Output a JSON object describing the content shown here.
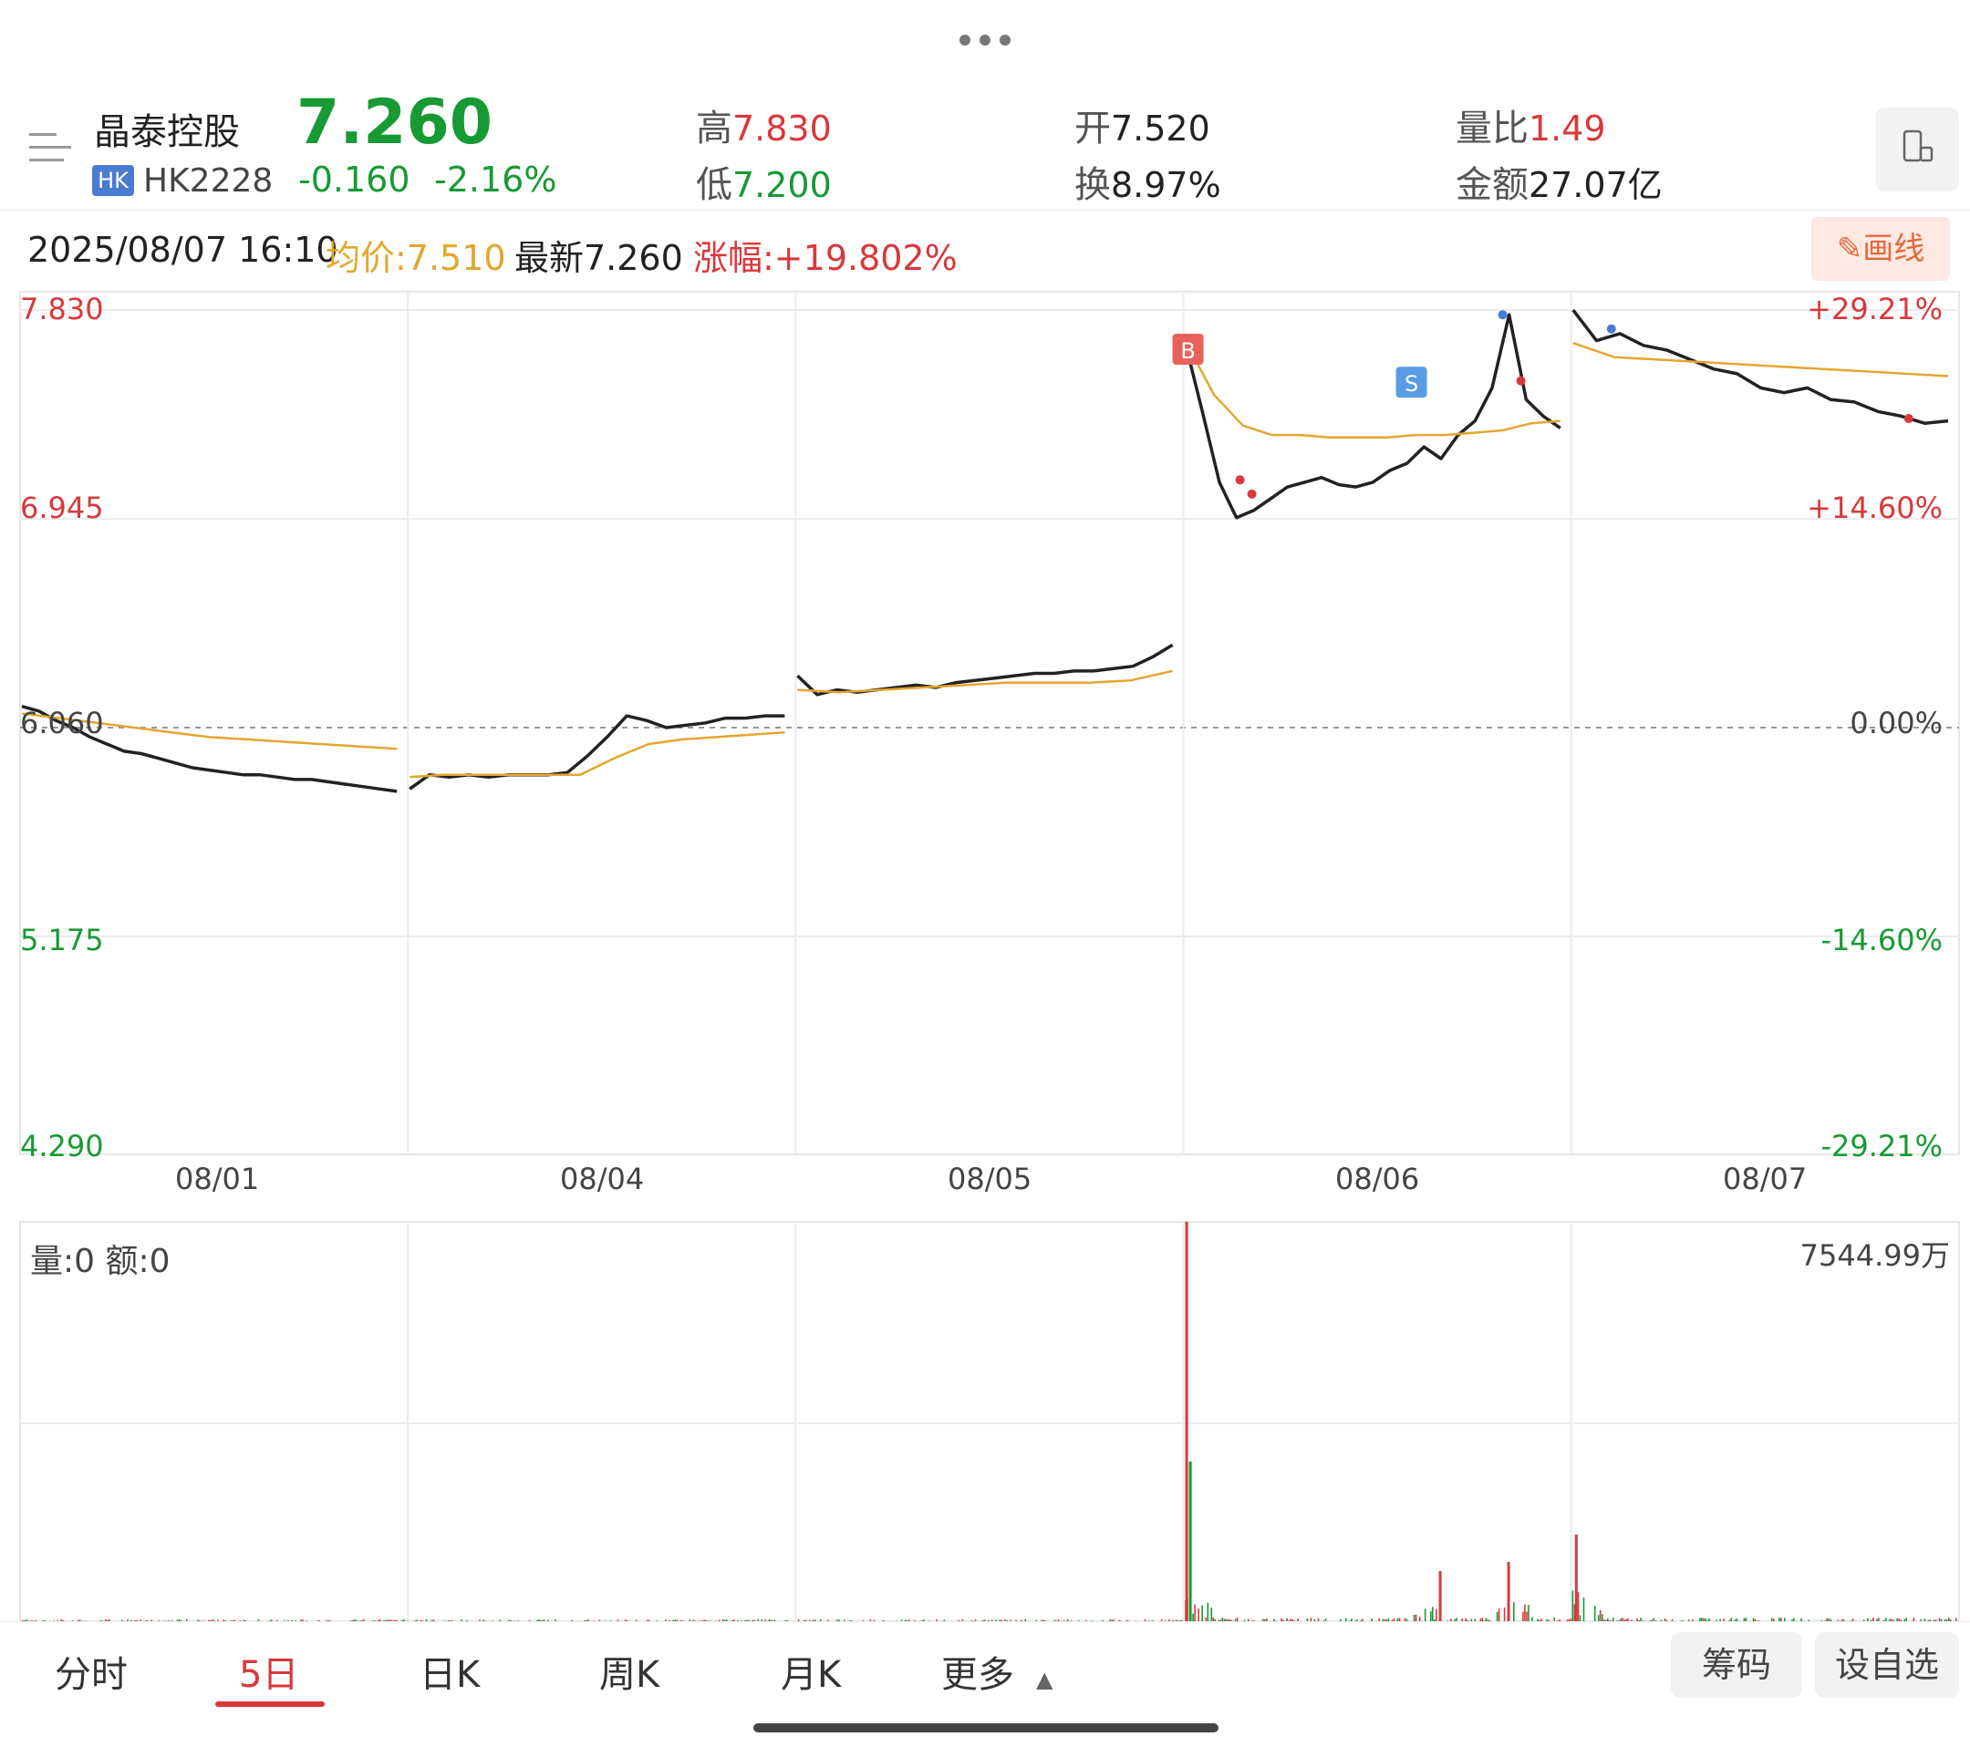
{
  "header": {
    "stock_name": "晶泰控股",
    "market_badge": "HK",
    "stock_code": "HK2228",
    "price": "7.260",
    "change": "-0.160",
    "change_pct": "-2.16%",
    "high_label": "高",
    "high_value": "7.830",
    "low_label": "低",
    "low_value": "7.200",
    "open_label": "开",
    "open_value": "7.520",
    "turnover_label": "换",
    "turnover_value": "8.97%",
    "vol_ratio_label": "量比",
    "vol_ratio_value": "1.49",
    "amount_label": "金额",
    "amount_value": "27.07亿"
  },
  "info_bar": {
    "datetime": "2025/08/07 16:10",
    "avg_label": "均价:7.510",
    "latest_label": "最新7.260",
    "rise_label": "涨幅:+19.802%",
    "draw_button": "画线"
  },
  "price_axis": {
    "left": [
      "7.830",
      "6.945",
      "6.060",
      "5.175",
      "4.290"
    ],
    "right": [
      "+29.21%",
      "+14.60%",
      "0.00%",
      "-14.60%",
      "-29.21%"
    ]
  },
  "markers": {
    "buy": "B",
    "sell": "S"
  },
  "volume_panel": {
    "label": "量:0  额:0",
    "max_label": "7544.99万"
  },
  "tabs": {
    "items": [
      "分时",
      "5日",
      "日K",
      "周K",
      "月K",
      "更多"
    ],
    "active_index": 1
  },
  "buttons": {
    "chips": "筹码",
    "add_watch": "设自选"
  },
  "chart_data": {
    "type": "line",
    "title": "",
    "x_labels": [
      "08/01",
      "08/04",
      "08/05",
      "08/06",
      "08/07"
    ],
    "ylim": [
      4.29,
      7.83
    ],
    "prev_close": 6.06,
    "series": [
      {
        "name": "",
        "color": "#222222",
        "days": [
          [
            6.15,
            6.13,
            6.09,
            6.06,
            6.02,
            5.99,
            5.96,
            5.95,
            5.93,
            5.91,
            5.89,
            5.88,
            5.87,
            5.86,
            5.86,
            5.85,
            5.84,
            5.84,
            5.83,
            5.82,
            5.81,
            5.8,
            5.79
          ],
          [
            5.8,
            5.86,
            5.85,
            5.86,
            5.85,
            5.86,
            5.86,
            5.86,
            5.87,
            5.94,
            6.02,
            6.11,
            6.09,
            6.06,
            6.07,
            6.08,
            6.1,
            6.1,
            6.11,
            6.11
          ],
          [
            6.28,
            6.2,
            6.22,
            6.21,
            6.22,
            6.23,
            6.24,
            6.23,
            6.25,
            6.26,
            6.27,
            6.28,
            6.29,
            6.29,
            6.3,
            6.3,
            6.31,
            6.32,
            6.36,
            6.41
          ],
          [
            7.69,
            7.4,
            7.1,
            6.95,
            6.98,
            7.03,
            7.08,
            7.1,
            7.12,
            7.09,
            7.08,
            7.1,
            7.15,
            7.18,
            7.25,
            7.2,
            7.3,
            7.36,
            7.5,
            7.81,
            7.45,
            7.38,
            7.33
          ],
          [
            7.83,
            7.7,
            7.73,
            7.68,
            7.66,
            7.62,
            7.58,
            7.56,
            7.5,
            7.48,
            7.5,
            7.45,
            7.44,
            7.4,
            7.38,
            7.35,
            7.36
          ]
        ]
      },
      {
        "name": "",
        "color": "#e2a72e",
        "days": [
          [
            6.12,
            6.1,
            6.08,
            6.06,
            6.04,
            6.02,
            6.01,
            6.0,
            5.99,
            5.98,
            5.97
          ],
          [
            5.85,
            5.86,
            5.86,
            5.86,
            5.86,
            5.86,
            5.93,
            5.99,
            6.01,
            6.02,
            6.03,
            6.04
          ],
          [
            6.22,
            6.21,
            6.22,
            6.23,
            6.24,
            6.25,
            6.25,
            6.25,
            6.26,
            6.3
          ],
          [
            7.7,
            7.47,
            7.34,
            7.3,
            7.3,
            7.29,
            7.29,
            7.29,
            7.3,
            7.3,
            7.31,
            7.32,
            7.35,
            7.36
          ],
          [
            7.69,
            7.63,
            7.62,
            7.61,
            7.6,
            7.59,
            7.58,
            7.57,
            7.56,
            7.55
          ]
        ]
      }
    ],
    "volume_max": "7544.99万"
  }
}
